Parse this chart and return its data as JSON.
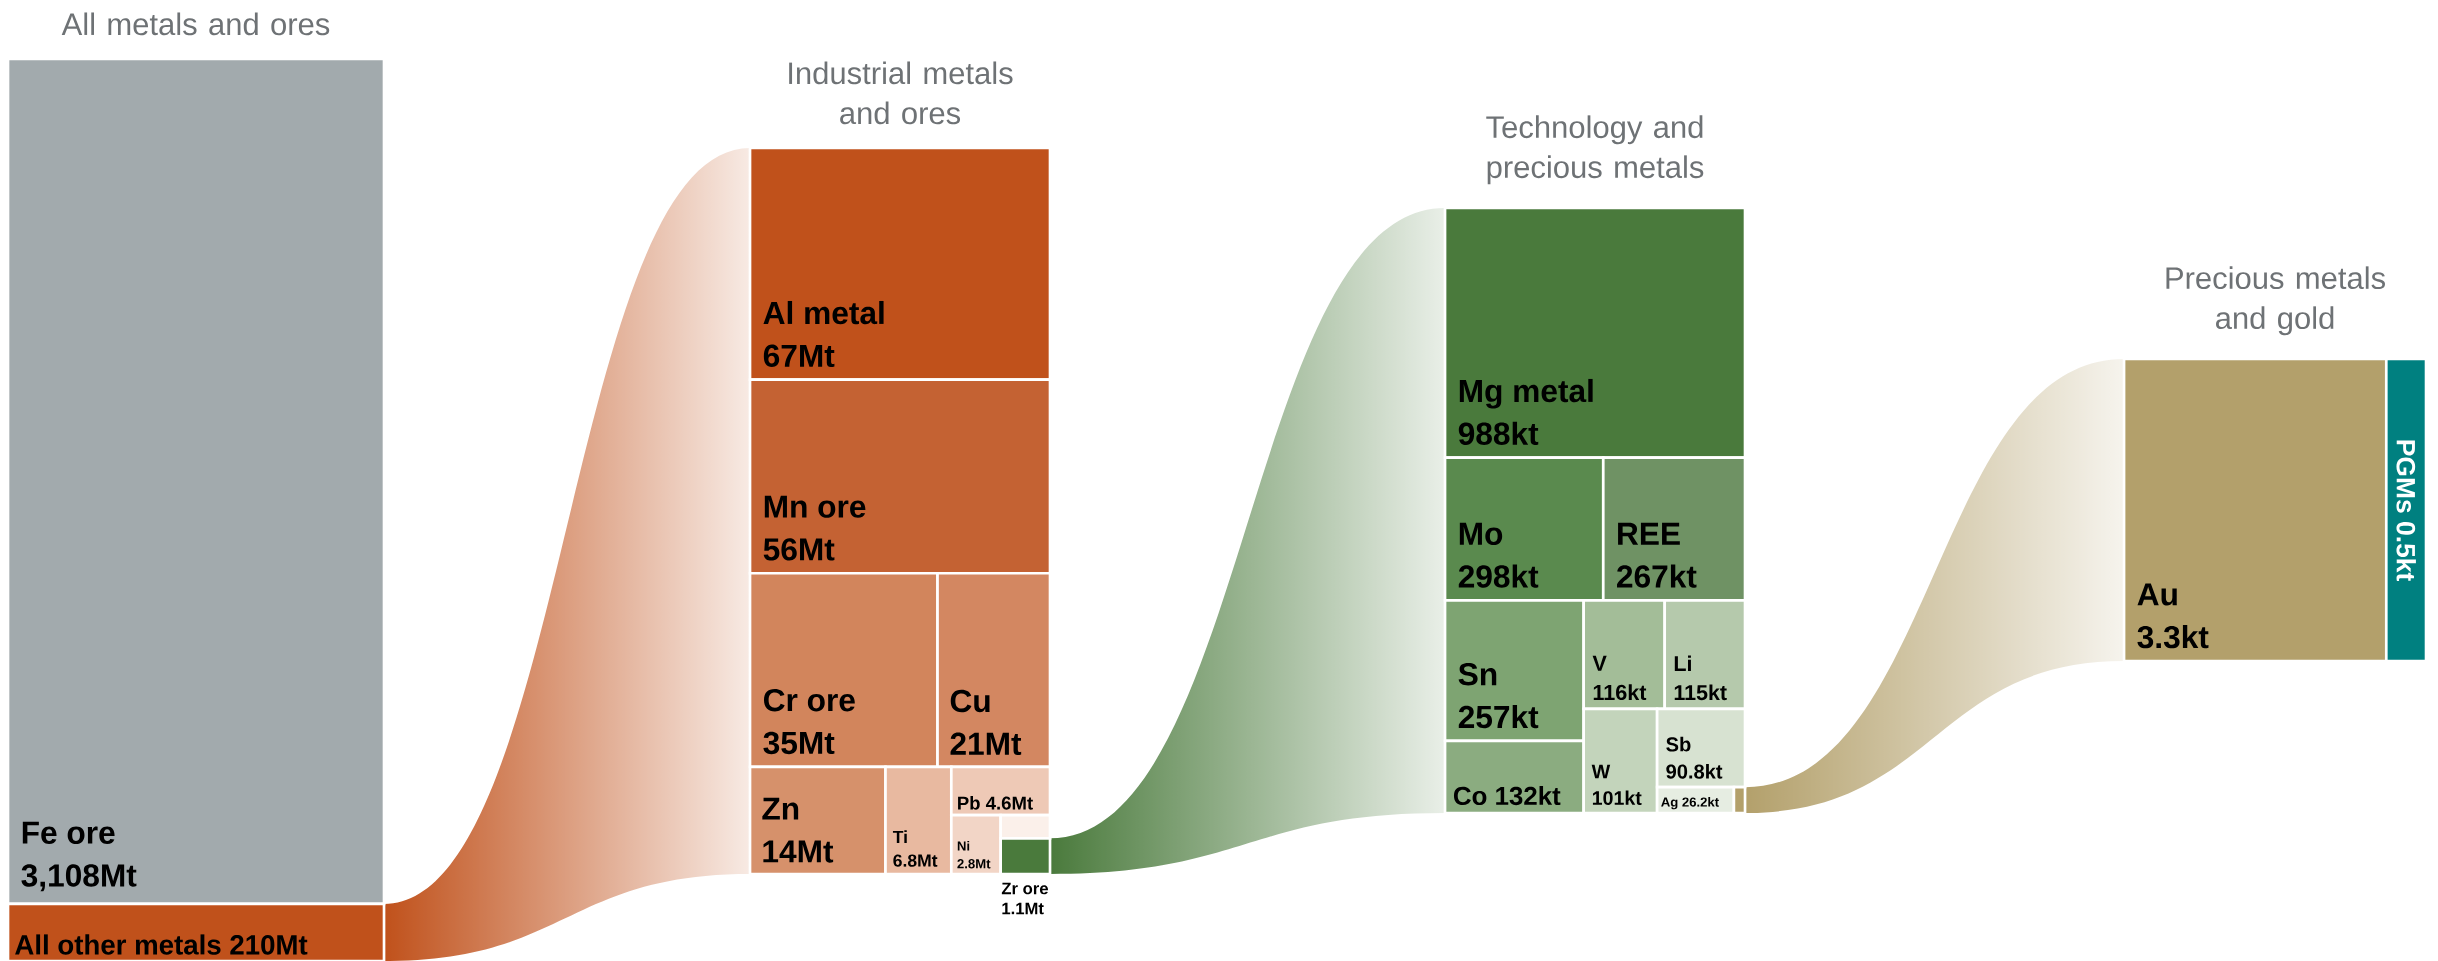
{
  "chart_data": [
    {
      "type": "other",
      "title": "All metals and ores",
      "categories": [
        "Fe ore",
        "All other metals"
      ],
      "values": [
        3108,
        210
      ],
      "value_labels": [
        "3,108Mt",
        "210Mt"
      ],
      "colors": [
        "#a2aaad",
        "#c0511b"
      ]
    },
    {
      "type": "other",
      "title": "Industrial metals and ores",
      "categories": [
        "Al metal",
        "Mn ore",
        "Cr ore",
        "Cu",
        "Zn",
        "Ti",
        "Pb",
        "Ni",
        "Zr ore"
      ],
      "values": [
        67,
        56,
        35,
        21,
        14,
        6.8,
        4.6,
        2.8,
        1.1
      ],
      "value_labels": [
        "67Mt",
        "56Mt",
        "35Mt",
        "21Mt",
        "14Mt",
        "6.8Mt",
        "4.6Mt",
        "2.8Mt",
        "1.1Mt"
      ],
      "colors": [
        "#c0511b",
        "#c46233",
        "#d2855c",
        "#d38761",
        "#d6916b",
        "#e8b9a0",
        "#eec9b6",
        "#f2d5c6",
        "#fbf0ea"
      ]
    },
    {
      "type": "other",
      "title": "Technology and precious metals",
      "categories": [
        "Mg metal",
        "Mo",
        "REE",
        "Sn",
        "Co",
        "V",
        "Li",
        "W",
        "Sb",
        "Ag"
      ],
      "values": [
        988,
        298,
        267,
        257,
        132,
        116,
        115,
        101,
        90.8,
        26.2
      ],
      "value_labels": [
        "988kt",
        "298kt",
        "267kt",
        "257kt",
        "132kt",
        "116kt",
        "115kt",
        "101kt",
        "90.8kt",
        "26.2kt"
      ],
      "colors": [
        "#4a7a3c",
        "#5a8a4e",
        "#6f9264",
        "#7ea472",
        "#8bac80",
        "#a3bd98",
        "#b5c9ac",
        "#c3d4bb",
        "#d7e2d1",
        "#e6ede2"
      ]
    },
    {
      "type": "other",
      "title": "Precious metals and gold",
      "categories": [
        "Au",
        "PGMs"
      ],
      "values": [
        3.3,
        0.5
      ],
      "value_labels": [
        "3.3kt",
        "0.5kt"
      ],
      "colors": [
        "#b3a06b",
        "#008080"
      ]
    }
  ]
}
